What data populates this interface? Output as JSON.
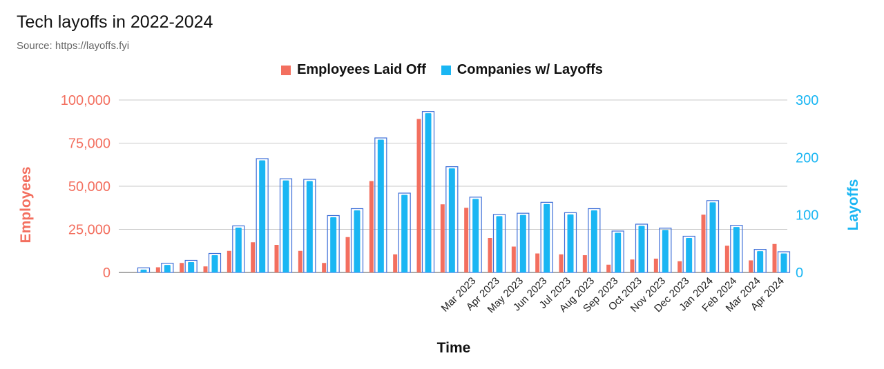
{
  "header": {
    "title": "Tech layoffs in 2022-2024",
    "subtitle": "Source: https://layoffs.fyi"
  },
  "colors": {
    "employees": "#f36f5f",
    "companies": "#1ab6f3",
    "companies_outline": "#3d6fd8",
    "left_axis": "#f36f5f",
    "right_axis": "#1ab6f3",
    "grid": "#c8c8c8"
  },
  "chart_data": {
    "type": "bar",
    "title": "Tech layoffs in 2022-2024",
    "subtitle": "Source: https://layoffs.fyi",
    "xlabel": "Time",
    "ylabel_left": "Employees",
    "ylabel_right": "Layoffs",
    "ylim_left": [
      0,
      100000
    ],
    "ylim_right": [
      0,
      300
    ],
    "yticks_left": [
      "0",
      "25,000",
      "50,000",
      "75,000",
      "100,000"
    ],
    "yticks_right": [
      "0",
      "100",
      "200",
      "300"
    ],
    "legend_position": "top-center",
    "grid": true,
    "categories": [
      "",
      "",
      "",
      "",
      "",
      "",
      "",
      "",
      "",
      "",
      "",
      "",
      "",
      "",
      "Mar 2023",
      "Apr 2023",
      "May 2023",
      "Jun 2023",
      "Jul 2023",
      "Aug 2023",
      "Sep 2023",
      "Oct 2023",
      "Nov 2023",
      "Dec 2023",
      "Jan 2024",
      "Feb 2024",
      "Mar 2024",
      "Apr 2024"
    ],
    "series": [
      {
        "name": "Employees Laid Off",
        "axis": "left",
        "values": [
          0,
          3000,
          5500,
          3500,
          12500,
          17500,
          16000,
          12500,
          5500,
          20500,
          53000,
          10500,
          89000,
          39500,
          37500,
          20000,
          15000,
          11000,
          10500,
          10000,
          4500,
          7500,
          8000,
          6500,
          33500,
          15500,
          7000,
          16500
        ]
      },
      {
        "name": "Companies w/ Layoffs",
        "axis": "right",
        "values": [
          5,
          13,
          18,
          30,
          78,
          195,
          160,
          159,
          96,
          108,
          231,
          135,
          277,
          181,
          128,
          98,
          100,
          119,
          101,
          108,
          69,
          81,
          74,
          60,
          122,
          79,
          37,
          33
        ]
      }
    ]
  }
}
